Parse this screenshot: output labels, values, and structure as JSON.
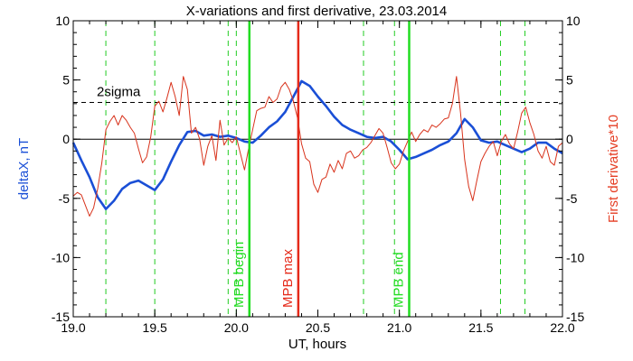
{
  "chart_data": {
    "type": "line",
    "title": "X-variations and first derivative, 23.03.2014",
    "xlabel": "UT, hours",
    "ylabel_left": "deltaX, nT",
    "ylabel_right": "First derivative*10",
    "xlim": [
      19.0,
      22.0
    ],
    "ylim": [
      -15,
      10
    ],
    "x_ticks": [
      "19.0",
      "19.5",
      "20.0",
      "20.5",
      "21.0",
      "21.5",
      "22.0"
    ],
    "y_ticks": [
      "10",
      "5",
      "0",
      "-5",
      "-10",
      "-15"
    ],
    "colors": {
      "deltaX": "#1a4fd6",
      "derivative": "#d8331c",
      "mpb_edges": "#22dd22",
      "mpb_max": "#e52a1a",
      "dashed_green": "#22cc22"
    },
    "threshold": {
      "label": "2sigma",
      "value": 3.1
    },
    "zero_line": 0,
    "dashed_verticals": [
      19.2,
      19.5,
      19.95,
      20.0,
      20.78,
      20.97,
      21.62,
      21.77
    ],
    "markers": [
      {
        "x": 20.08,
        "label": "MPB begin",
        "color": "#22dd22"
      },
      {
        "x": 20.38,
        "label": "MPB max",
        "color": "#e52a1a"
      },
      {
        "x": 21.06,
        "label": "MPB end",
        "color": "#22dd22"
      }
    ],
    "series": [
      {
        "name": "deltaX",
        "color": "#1a4fd6",
        "x": [
          19.0,
          19.05,
          19.1,
          19.15,
          19.2,
          19.25,
          19.3,
          19.35,
          19.4,
          19.45,
          19.5,
          19.55,
          19.6,
          19.65,
          19.7,
          19.75,
          19.8,
          19.85,
          19.9,
          19.95,
          20.0,
          20.05,
          20.1,
          20.15,
          20.2,
          20.25,
          20.3,
          20.35,
          20.4,
          20.45,
          20.5,
          20.55,
          20.6,
          20.65,
          20.7,
          20.75,
          20.8,
          20.85,
          20.9,
          20.95,
          21.0,
          21.05,
          21.1,
          21.15,
          21.2,
          21.25,
          21.3,
          21.35,
          21.4,
          21.45,
          21.5,
          21.55,
          21.6,
          21.65,
          21.7,
          21.75,
          21.8,
          21.85,
          21.9,
          21.95,
          22.0
        ],
        "values": [
          -0.3,
          -1.8,
          -3.2,
          -4.9,
          -5.9,
          -5.2,
          -4.2,
          -3.7,
          -3.5,
          -3.9,
          -4.3,
          -3.4,
          -1.9,
          -0.5,
          0.6,
          0.7,
          0.3,
          0.4,
          0.2,
          0.3,
          0.1,
          -0.2,
          -0.3,
          0.3,
          1.0,
          1.5,
          2.3,
          3.6,
          4.9,
          4.5,
          3.6,
          2.8,
          1.9,
          1.2,
          0.8,
          0.5,
          0.2,
          0.1,
          0.2,
          -0.2,
          -0.9,
          -1.7,
          -1.5,
          -1.2,
          -0.9,
          -0.5,
          -0.2,
          0.5,
          1.7,
          1.0,
          -0.1,
          -0.3,
          -0.2,
          -0.5,
          -0.8,
          -1.1,
          -0.8,
          -0.3,
          -0.3,
          -0.8,
          -1.2
        ]
      },
      {
        "name": "First derivative*10",
        "color": "#d8331c",
        "x": [
          19.0,
          19.025,
          19.05,
          19.075,
          19.1,
          19.125,
          19.15,
          19.175,
          19.2,
          19.225,
          19.25,
          19.275,
          19.3,
          19.325,
          19.35,
          19.375,
          19.4,
          19.425,
          19.45,
          19.475,
          19.5,
          19.525,
          19.55,
          19.575,
          19.6,
          19.625,
          19.65,
          19.675,
          19.7,
          19.725,
          19.75,
          19.775,
          19.8,
          19.825,
          19.85,
          19.875,
          19.9,
          19.925,
          19.95,
          19.975,
          20.0,
          20.025,
          20.05,
          20.075,
          20.1,
          20.125,
          20.15,
          20.175,
          20.2,
          20.225,
          20.25,
          20.275,
          20.3,
          20.325,
          20.35,
          20.375,
          20.4,
          20.425,
          20.45,
          20.475,
          20.5,
          20.525,
          20.55,
          20.575,
          20.6,
          20.625,
          20.65,
          20.675,
          20.7,
          20.725,
          20.75,
          20.775,
          20.8,
          20.825,
          20.85,
          20.875,
          20.9,
          20.925,
          20.95,
          20.975,
          21.0,
          21.025,
          21.05,
          21.075,
          21.1,
          21.125,
          21.15,
          21.175,
          21.2,
          21.225,
          21.25,
          21.275,
          21.3,
          21.325,
          21.35,
          21.375,
          21.4,
          21.425,
          21.45,
          21.475,
          21.5,
          21.525,
          21.55,
          21.575,
          21.6,
          21.625,
          21.65,
          21.675,
          21.7,
          21.725,
          21.75,
          21.775,
          21.8,
          21.825,
          21.85,
          21.875,
          21.9,
          21.925,
          21.95,
          21.975,
          22.0
        ],
        "values": [
          -4.8,
          -4.5,
          -4.7,
          -5.6,
          -6.5,
          -5.8,
          -4.2,
          -2.0,
          0.8,
          1.5,
          2.0,
          1.2,
          2.0,
          1.6,
          1.0,
          0.5,
          -0.8,
          -2.0,
          -1.5,
          0.2,
          2.8,
          3.2,
          2.3,
          3.5,
          4.8,
          3.6,
          2.0,
          5.3,
          4.2,
          0.5,
          1.0,
          0.0,
          -2.2,
          -0.6,
          0.3,
          -1.8,
          1.6,
          -0.5,
          0.1,
          -0.3,
          0.2,
          -1.2,
          -2.6,
          -0.8,
          0.8,
          2.4,
          2.6,
          2.7,
          3.6,
          3.1,
          3.4,
          4.4,
          4.8,
          4.2,
          3.2,
          1.8,
          -0.4,
          -1.6,
          -1.9,
          -3.8,
          -4.5,
          -3.4,
          -3.2,
          -2.1,
          -2.8,
          -1.8,
          -2.5,
          -1.2,
          -1.0,
          -1.6,
          -1.4,
          -0.9,
          -0.7,
          -0.3,
          0.3,
          0.9,
          0.5,
          -0.7,
          -2.0,
          -2.5,
          -2.1,
          -1.0,
          -0.2,
          0.6,
          -0.2,
          0.4,
          0.8,
          0.6,
          1.2,
          1.0,
          1.3,
          1.7,
          1.8,
          3.0,
          5.3,
          2.2,
          -1.7,
          -4.0,
          -5.2,
          -3.5,
          -1.9,
          -1.2,
          -0.6,
          -0.2,
          -1.4,
          -0.2,
          0.4,
          -0.4,
          -0.8,
          0.6,
          2.2,
          2.7,
          1.4,
          0.4,
          -1.0,
          -1.6,
          -0.6,
          -1.9,
          -2.2,
          -0.6,
          -0.3
        ]
      }
    ]
  }
}
